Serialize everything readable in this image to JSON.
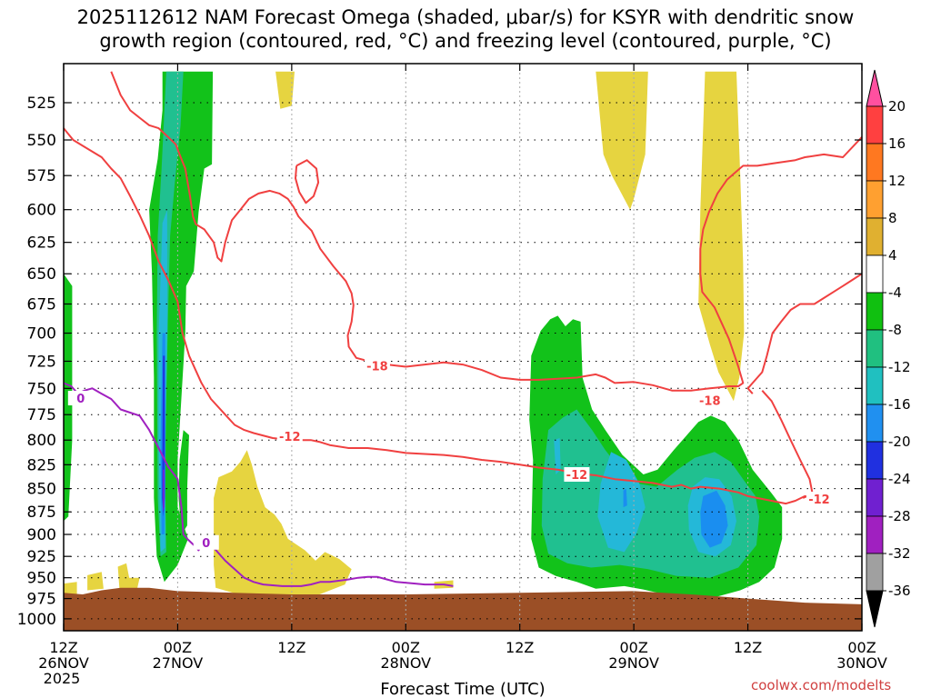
{
  "chart_data": {
    "type": "heatmap",
    "title_line1": "2025112612 NAM Forecast Omega (shaded, μbar/s) for KSYR with dendritic snow",
    "title_line2": "growth region (contoured, red, °C) and freezing level (contoured, purple, °C)",
    "xlabel": "Forecast Time (UTC)",
    "y_axis": {
      "type": "pressure_log_inverted",
      "unit": "hPa",
      "ylim": [
        1015,
        500
      ],
      "ticks": [
        525,
        550,
        575,
        600,
        625,
        650,
        675,
        700,
        725,
        750,
        775,
        800,
        825,
        850,
        875,
        900,
        925,
        950,
        975,
        1000
      ]
    },
    "x_axis": {
      "range_hours": [
        0,
        84
      ],
      "ticks": [
        {
          "hour": 0,
          "line1": "12Z",
          "line2": "26NOV",
          "line3": "2025"
        },
        {
          "hour": 12,
          "line1": "00Z",
          "line2": "27NOV",
          "line3": ""
        },
        {
          "hour": 24,
          "line1": "12Z",
          "line2": "",
          "line3": ""
        },
        {
          "hour": 36,
          "line1": "00Z",
          "line2": "28NOV",
          "line3": ""
        },
        {
          "hour": 48,
          "line1": "12Z",
          "line2": "",
          "line3": ""
        },
        {
          "hour": 60,
          "line1": "00Z",
          "line2": "29NOV",
          "line3": ""
        },
        {
          "hour": 72,
          "line1": "12Z",
          "line2": "",
          "line3": ""
        },
        {
          "hour": 84,
          "line1": "00Z",
          "line2": "30NOV",
          "line3": ""
        }
      ]
    },
    "grid": true,
    "colorbar": {
      "labels": [
        "20",
        "16",
        "12",
        "8",
        "4",
        "-4",
        "-8",
        "-12",
        "-16",
        "-20",
        "-24",
        "-28",
        "-32",
        "-36"
      ],
      "colors": [
        "#ff50a0",
        "#ff4040",
        "#ff7820",
        "#ffa030",
        "#e0b030",
        "#ffffff",
        "#10c010",
        "#20c080",
        "#20c0c0",
        "#2090f0",
        "#2030e0",
        "#7020d0",
        "#a020c0",
        "#a0a0a0",
        "#000000"
      ]
    },
    "contour_labels": {
      "dgz_upper": "-18",
      "dgz_lower": "-12",
      "freezing": "0"
    },
    "colors": {
      "omega_pos4": "#e6d440",
      "omega_neg4": "#12c21a",
      "omega_neg8": "#20c090",
      "omega_neg12": "#24b8d8",
      "omega_neg16": "#1a8ef0",
      "omega_neg20": "#2038e0",
      "omega_neg24": "#7a28d0",
      "dgz_contour": "#f04040",
      "freezing_contour": "#a020c0",
      "terrain": "#9b4f26"
    }
  },
  "credit": "coolwx.com/modelts"
}
